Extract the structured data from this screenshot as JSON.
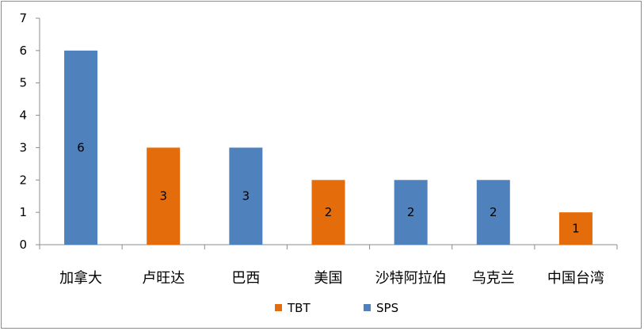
{
  "chart_data": {
    "type": "bar",
    "categories": [
      "加拿大",
      "卢旺达",
      "巴西",
      "美国",
      "沙特阿拉伯",
      "乌克兰",
      "中国台湾"
    ],
    "values": [
      6,
      3,
      3,
      2,
      2,
      2,
      1
    ],
    "bar_series": [
      "SPS",
      "TBT",
      "SPS",
      "TBT",
      "SPS",
      "SPS",
      "TBT"
    ],
    "legend": [
      {
        "name": "TBT",
        "color": "#e46c0a"
      },
      {
        "name": "SPS",
        "color": "#4f81bd"
      }
    ],
    "ylim": [
      0,
      7
    ],
    "yticks": [
      0,
      1,
      2,
      3,
      4,
      5,
      6,
      7
    ],
    "grid": false,
    "legend_position": "bottom",
    "data_labels": true
  }
}
